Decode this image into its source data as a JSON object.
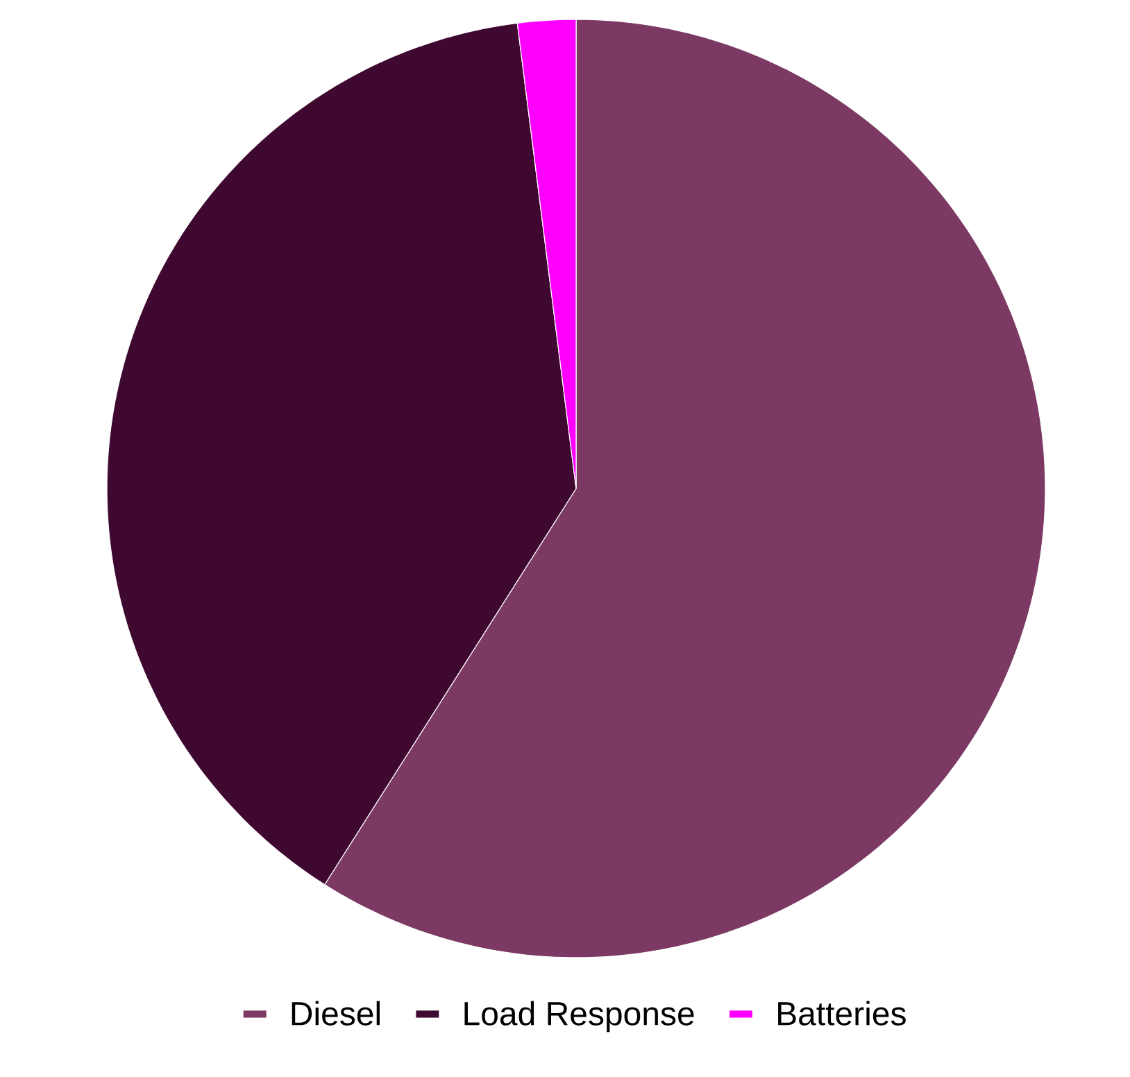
{
  "chart_data": {
    "type": "pie",
    "categories": [
      "Diesel",
      "Load Response",
      "Batteries"
    ],
    "values": [
      59,
      39,
      2
    ],
    "colors": [
      "#7b3963",
      "#3f0830",
      "#ff00ff"
    ],
    "legend": "bottom"
  }
}
